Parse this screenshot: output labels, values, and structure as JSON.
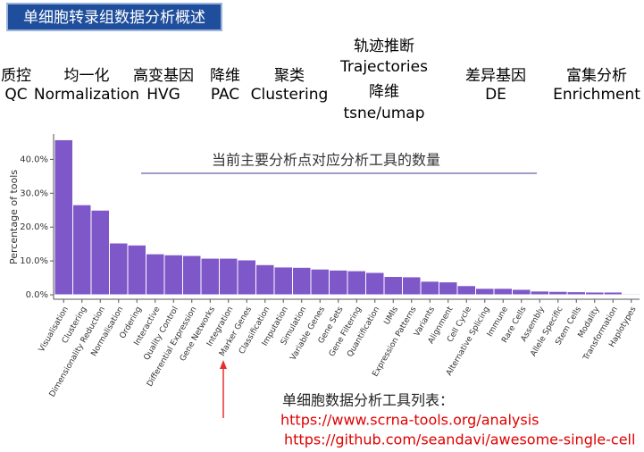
{
  "header": {
    "title": "单细胞转录组数据分析概述"
  },
  "steps": [
    {
      "lines": [
        "质控",
        "QC"
      ]
    },
    {
      "lines": [
        "均一化",
        "Normalization"
      ]
    },
    {
      "lines": [
        "高变基因",
        "HVG"
      ]
    },
    {
      "lines": [
        "降维",
        "PAC"
      ]
    },
    {
      "lines": [
        "聚类",
        "Clustering"
      ]
    },
    {
      "lines": [
        "轨迹推断",
        "Trajectories",
        "降维",
        "tsne/umap"
      ]
    },
    {
      "lines": [
        "差异基因",
        "DE"
      ]
    },
    {
      "lines": [
        "富集分析",
        "Enrichment"
      ]
    }
  ],
  "chart_data": {
    "type": "bar",
    "title": "当前主要分析点对应分析工具的数量",
    "y_label": "Percentage of tools",
    "categories": [
      "Visualisation",
      "Clustering",
      "Dimensionality Reduction",
      "Normalisation",
      "Ordering",
      "Interactive",
      "Quality Control",
      "Differential Expression",
      "Gene Networks",
      "Integration",
      "Marker Genes",
      "Classification",
      "Imputation",
      "Simulation",
      "Variable Genes",
      "Gene Sets",
      "Gene Filtering",
      "Quantification",
      "UMIs",
      "Expression Patterns",
      "Variants",
      "Alignment",
      "Cell Cycle",
      "Alternative Splicing",
      "Immune",
      "Rare Cells",
      "Assembly",
      "Allele Specific",
      "Stem Cells",
      "Modality",
      "Transformation",
      "Haplotypes"
    ],
    "values": [
      45.8,
      26.6,
      25.0,
      15.3,
      14.7,
      12.1,
      11.8,
      11.6,
      10.8,
      10.8,
      10.3,
      8.9,
      8.2,
      8.1,
      7.6,
      7.3,
      7.1,
      6.6,
      5.4,
      5.3,
      4.0,
      3.8,
      2.7,
      1.9,
      1.9,
      1.6,
      1.1,
      1.0,
      0.9,
      0.8,
      0.8,
      0.3
    ],
    "color": "#7e57c9",
    "ylim": [
      0,
      47.5
    ],
    "yticks": [
      {
        "value": 0,
        "label": "0.0%"
      },
      {
        "value": 10,
        "label": "10.0%"
      },
      {
        "value": 20,
        "label": "20.0%"
      },
      {
        "value": 30,
        "label": "30.0%"
      },
      {
        "value": 40,
        "label": "40.0%"
      }
    ]
  },
  "notes": {
    "heading": "单细胞数据分析工具列表：",
    "links": [
      "https://www.scrna-tools.org/analysis",
      "https://github.com/seandavi/awesome-single-cell"
    ]
  }
}
